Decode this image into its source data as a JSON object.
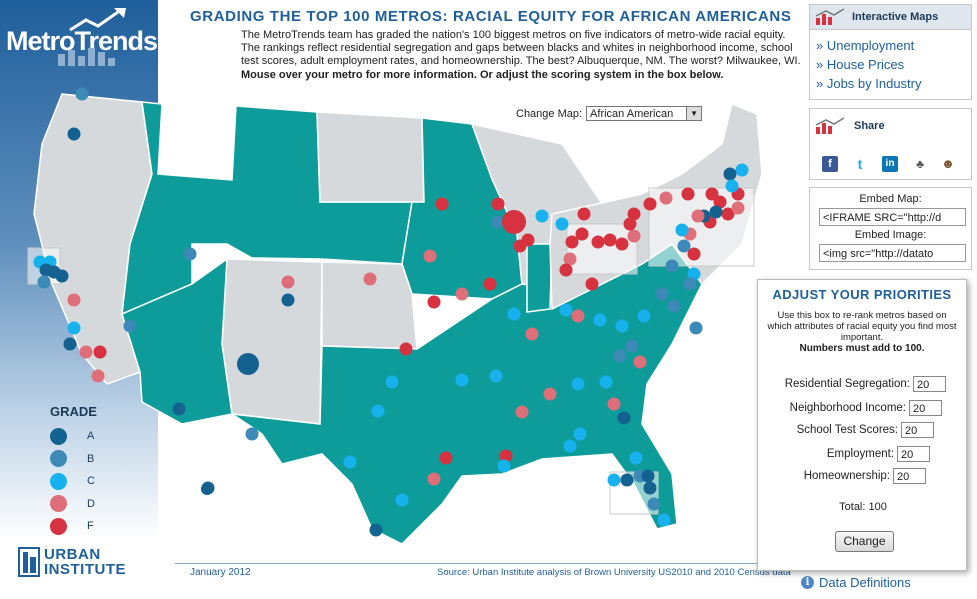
{
  "brand": {
    "name": "MetroTrends"
  },
  "title": "GRADING THE TOP 100 METROS: RACIAL EQUITY FOR AFRICAN AMERICANS",
  "intro": {
    "text": "The MetroTrends team has graded the nation's 100 biggest metros on five indicators of metro-wide racial equity. The rankings reflect residential segregation and gaps between blacks and whites in neighborhood income, school test scores, adult employment rates, and homeownership. The best? Albuquerque, NM. The worst? Milwaukee, WI.",
    "bold": "Mouse over your metro for more information. Or adjust the scoring system in the box below."
  },
  "change_map": {
    "label": "Change Map:",
    "selected": "African American"
  },
  "legend": {
    "title": "GRADE",
    "items": [
      {
        "label": "A",
        "color": "#14628f"
      },
      {
        "label": "B",
        "color": "#3d8ab9"
      },
      {
        "label": "C",
        "color": "#17b2ee"
      },
      {
        "label": "D",
        "color": "#de6e78"
      },
      {
        "label": "F",
        "color": "#d6323f"
      }
    ]
  },
  "colors": {
    "teal": "#0e9c9a",
    "gray": "#d5d9dc",
    "accent": "#1f5f9b"
  },
  "urban_institute": {
    "line1": "URBAN",
    "line2": "INSTITUTE"
  },
  "footer": {
    "date": "January 2012",
    "source": "Source: Urban Institute analysis of Brown University US2010 and 2010 Census data"
  },
  "interactive_maps": {
    "title": "Interactive Maps",
    "links": [
      "» Unemployment",
      "» House Prices",
      "» Jobs by Industry"
    ]
  },
  "share": {
    "title": "Share",
    "icons": [
      "facebook-icon",
      "twitter-icon",
      "linkedin-icon",
      "delicious-icon",
      "digg-icon"
    ]
  },
  "embed": {
    "map_label": "Embed Map:",
    "map_code": "<IFRAME SRC=\"http://d",
    "image_label": "Embed Image:",
    "image_code": "<img src=\"http://datato"
  },
  "priorities": {
    "title": "ADJUST YOUR PRIORITIES",
    "desc": "Use this box to re-rank metros based on which attributes of racial equity you find most important.",
    "desc_bold": "Numbers must add to 100.",
    "fields": [
      {
        "label": "Residential Segregation:",
        "value": "20"
      },
      {
        "label": "Neighborhood Income:",
        "value": "20"
      },
      {
        "label": "School Test Scores:",
        "value": "20"
      },
      {
        "label": "Employment:",
        "value": "20"
      },
      {
        "label": "Homeownership:",
        "value": "20"
      }
    ],
    "total": "Total: 100",
    "button": "Change"
  },
  "data_definitions": "Data Definitions"
}
